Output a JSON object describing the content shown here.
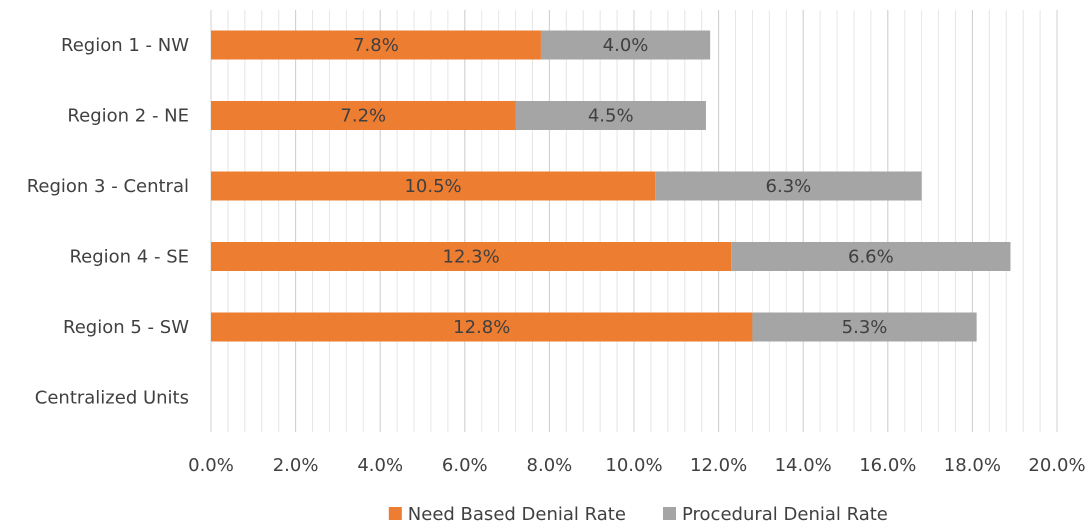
{
  "chart_data": {
    "type": "bar",
    "orientation": "horizontal",
    "stacked": true,
    "categories": [
      "Region 1 - NW",
      "Region 2 - NE",
      "Region 3 - Central",
      "Region 4 - SE",
      "Region 5 - SW",
      "Centralized Units"
    ],
    "series": [
      {
        "name": "Need Based Denial Rate",
        "color": "#ED7D31",
        "values": [
          7.8,
          7.2,
          10.5,
          12.3,
          12.8,
          null
        ],
        "labels": [
          "7.8%",
          "7.2%",
          "10.5%",
          "12.3%",
          "12.8%",
          ""
        ]
      },
      {
        "name": "Procedural Denial Rate",
        "color": "#A5A5A5",
        "values": [
          4.0,
          4.5,
          6.3,
          6.6,
          5.3,
          null
        ],
        "labels": [
          "4.0%",
          "4.5%",
          "6.3%",
          "6.6%",
          "5.3%",
          ""
        ]
      }
    ],
    "xlim": [
      0,
      20
    ],
    "x_ticks": [
      0,
      2,
      4,
      6,
      8,
      10,
      12,
      14,
      16,
      18,
      20
    ],
    "x_tick_labels": [
      "0.0%",
      "2.0%",
      "4.0%",
      "6.0%",
      "8.0%",
      "10.0%",
      "12.0%",
      "14.0%",
      "16.0%",
      "18.0%",
      "20.0%"
    ],
    "minor_grid_step": 0.4,
    "grid": true,
    "legend_position": "bottom",
    "title": "",
    "xlabel": "",
    "ylabel": ""
  }
}
